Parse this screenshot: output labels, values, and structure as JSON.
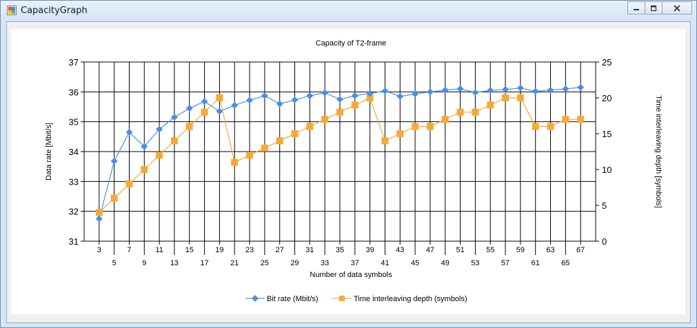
{
  "window": {
    "title": "CapacityGraph",
    "controls": {
      "minimize": "minimize",
      "maximize": "maximize",
      "close": "close"
    }
  },
  "colors": {
    "bitrate": "#4a8ee8",
    "interleave": "#f7a936",
    "frame": "#d7e6f5",
    "grid": "#000000"
  },
  "chart_data": {
    "type": "line",
    "title": "Capacity of T2-frame",
    "xlabel": "Number of data symbols",
    "ylabel": "Data rate [Mbit/s]",
    "y2label": "Time interleaving depth [symbols]",
    "x": [
      3,
      5,
      7,
      9,
      11,
      13,
      15,
      17,
      19,
      21,
      23,
      25,
      27,
      29,
      31,
      33,
      35,
      37,
      39,
      41,
      43,
      45,
      47,
      49,
      51,
      53,
      55,
      57,
      59,
      61,
      63,
      65,
      67
    ],
    "ylim": [
      31,
      37
    ],
    "y2lim": [
      0,
      25
    ],
    "yticks": [
      31,
      32,
      33,
      34,
      35,
      36,
      37
    ],
    "y2ticks": [
      0,
      5,
      10,
      15,
      20,
      25
    ],
    "grid": true,
    "legend_position": "bottom-center",
    "series": [
      {
        "name": "Bit rate (Mbit/s)",
        "axis": "left",
        "marker": "diamond",
        "values": [
          31.75,
          33.68,
          34.65,
          34.17,
          34.75,
          35.15,
          35.45,
          35.68,
          35.35,
          35.55,
          35.72,
          35.87,
          35.6,
          35.73,
          35.87,
          35.97,
          35.75,
          35.87,
          35.95,
          36.03,
          35.85,
          35.93,
          36.0,
          36.06,
          36.1,
          35.98,
          36.05,
          36.08,
          36.13,
          36.02,
          36.06,
          36.1,
          36.15
        ]
      },
      {
        "name": "Time interleaving depth (symbols)",
        "axis": "right",
        "marker": "square",
        "values": [
          4,
          6,
          8,
          10,
          12,
          14,
          16,
          18,
          20,
          11,
          12,
          13,
          14,
          15,
          16,
          17,
          18,
          19,
          20,
          14,
          15,
          16,
          16,
          17,
          18,
          18,
          19,
          20,
          20,
          16,
          16,
          17,
          17
        ]
      }
    ]
  }
}
